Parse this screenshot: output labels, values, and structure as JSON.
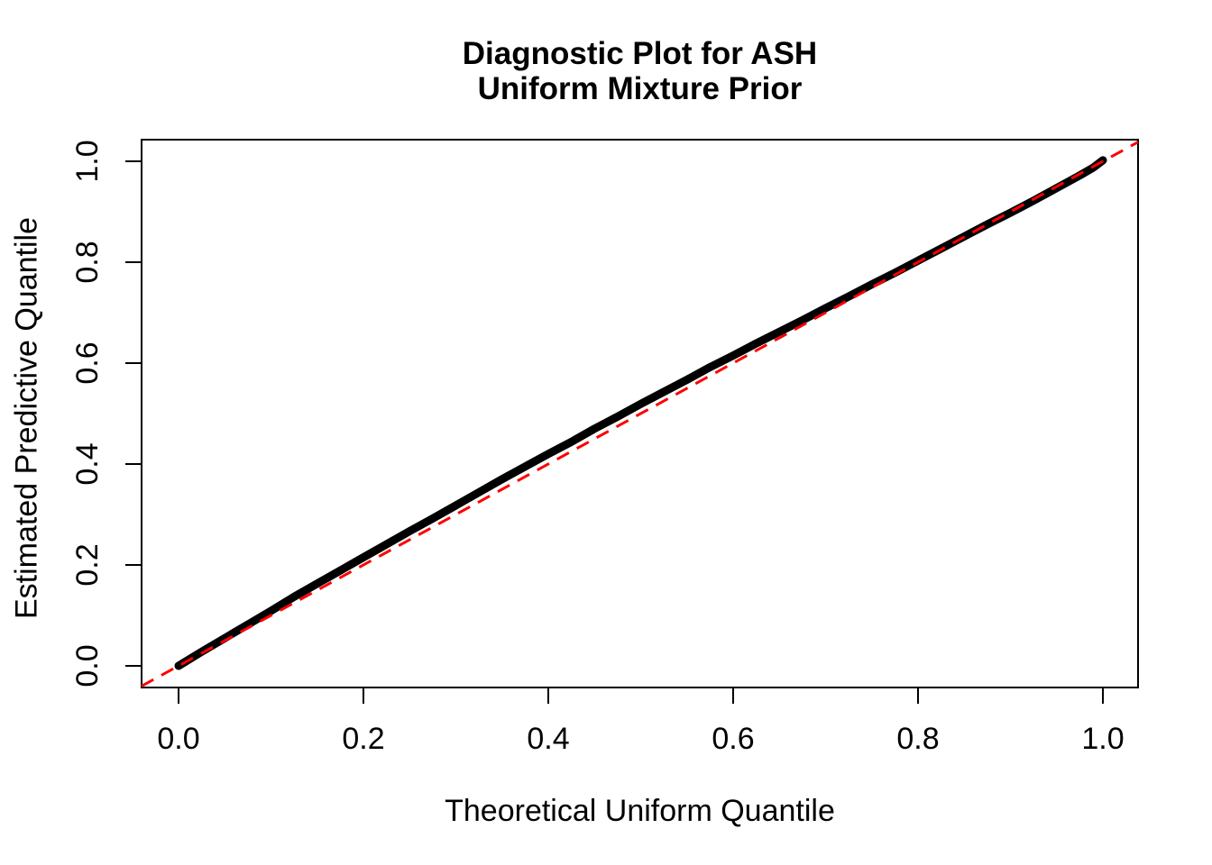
{
  "page": {
    "background_color": "#ffffff",
    "text_color": "#000000"
  },
  "chart_data": {
    "type": "line",
    "title": "Diagnostic Plot for ASH\nUniform Mixture Prior",
    "title_lines": [
      "Diagnostic Plot for ASH",
      "Uniform Mixture Prior"
    ],
    "xlabel": "Theoretical Uniform Quantile",
    "ylabel": "Estimated Predictive Quantile",
    "xlim": [
      -0.04,
      1.04
    ],
    "ylim": [
      -0.04,
      1.04
    ],
    "grid": false,
    "legend": "none",
    "x_ticks": [
      0.0,
      0.2,
      0.4,
      0.6,
      0.8,
      1.0
    ],
    "y_ticks": [
      0.0,
      0.2,
      0.4,
      0.6,
      0.8,
      1.0
    ],
    "x_tick_labels": [
      "0.0",
      "0.2",
      "0.4",
      "0.6",
      "0.8",
      "1.0"
    ],
    "y_tick_labels": [
      "0.0",
      "0.2",
      "0.4",
      "0.6",
      "0.8",
      "1.0"
    ],
    "series": [
      {
        "name": "estimated-predictive-quantile-curve",
        "type": "line",
        "style": "solid",
        "color": "#000000",
        "linewidth": 9,
        "points": [
          [
            0.0,
            0.0
          ],
          [
            0.025,
            0.028
          ],
          [
            0.05,
            0.055
          ],
          [
            0.075,
            0.082
          ],
          [
            0.1,
            0.109
          ],
          [
            0.125,
            0.137
          ],
          [
            0.15,
            0.163
          ],
          [
            0.175,
            0.189
          ],
          [
            0.2,
            0.215
          ],
          [
            0.225,
            0.241
          ],
          [
            0.25,
            0.267
          ],
          [
            0.275,
            0.292
          ],
          [
            0.3,
            0.318
          ],
          [
            0.325,
            0.344
          ],
          [
            0.35,
            0.37
          ],
          [
            0.375,
            0.395
          ],
          [
            0.4,
            0.42
          ],
          [
            0.425,
            0.444
          ],
          [
            0.45,
            0.47
          ],
          [
            0.475,
            0.494
          ],
          [
            0.5,
            0.519
          ],
          [
            0.525,
            0.543
          ],
          [
            0.55,
            0.567
          ],
          [
            0.575,
            0.592
          ],
          [
            0.6,
            0.615
          ],
          [
            0.625,
            0.639
          ],
          [
            0.65,
            0.662
          ],
          [
            0.675,
            0.685
          ],
          [
            0.7,
            0.709
          ],
          [
            0.725,
            0.732
          ],
          [
            0.75,
            0.756
          ],
          [
            0.775,
            0.779
          ],
          [
            0.8,
            0.803
          ],
          [
            0.825,
            0.827
          ],
          [
            0.85,
            0.851
          ],
          [
            0.875,
            0.875
          ],
          [
            0.9,
            0.898
          ],
          [
            0.925,
            0.922
          ],
          [
            0.95,
            0.947
          ],
          [
            0.975,
            0.972
          ],
          [
            0.99,
            0.988
          ],
          [
            1.0,
            1.002
          ]
        ]
      },
      {
        "name": "reference-diagonal-y-equals-x",
        "type": "line",
        "style": "dashed",
        "color": "#ff0000",
        "linewidth": 3,
        "points": [
          [
            -0.04,
            -0.04
          ],
          [
            1.038,
            1.038
          ]
        ]
      }
    ]
  }
}
